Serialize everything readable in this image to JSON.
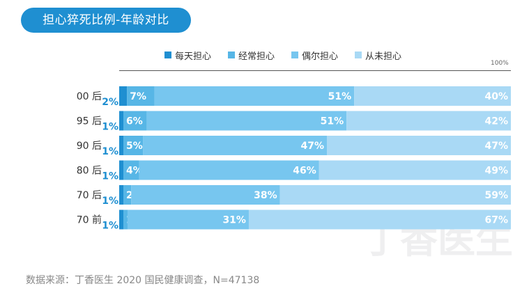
{
  "title": "担心猝死比例-年龄对比",
  "axis_max_label": "100%",
  "source": "数据来源：丁香医生 2020 国民健康调查，N=47138",
  "watermark": "丁香医生",
  "colors": {
    "title_bg": "#1f8fd1",
    "daily": "#1f8fd1",
    "often": "#57b6e6",
    "sometimes": "#77c6ef",
    "never": "#a9d9f5",
    "daily_label": "#1f8fd1"
  },
  "chart_data": {
    "type": "bar",
    "orientation": "horizontal",
    "stacked": true,
    "percent": true,
    "title": "担心猝死比例-年龄对比",
    "xlim": [
      0,
      100
    ],
    "categories": [
      "00 后",
      "95 后",
      "90 后",
      "80 后",
      "70 后",
      "70 前"
    ],
    "series": [
      {
        "name": "每天担心",
        "values": [
          2,
          1,
          1,
          1,
          1,
          1
        ]
      },
      {
        "name": "经常担心",
        "values": [
          7,
          6,
          5,
          4,
          2,
          1
        ]
      },
      {
        "name": "偶尔担心",
        "values": [
          51,
          51,
          47,
          46,
          38,
          31
        ]
      },
      {
        "name": "从未担心",
        "values": [
          40,
          42,
          47,
          49,
          59,
          67
        ]
      }
    ],
    "legend_position": "top",
    "grid": false
  }
}
